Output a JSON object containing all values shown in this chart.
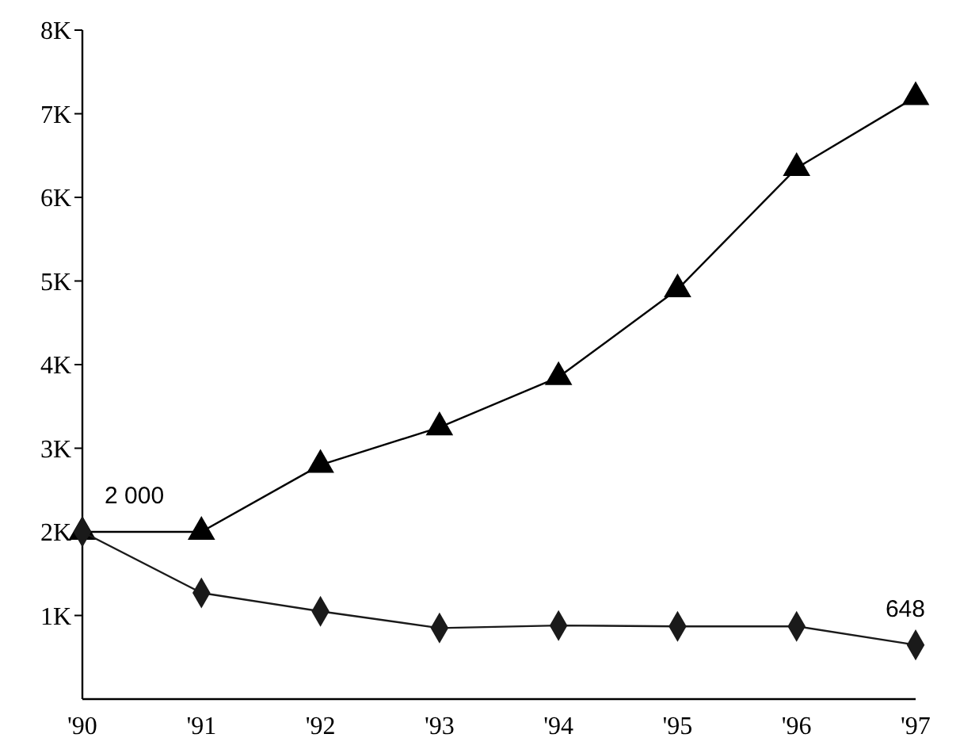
{
  "chart_data": {
    "type": "line",
    "categories": [
      "'90",
      "'91",
      "'92",
      "'93",
      "'94",
      "'95",
      "'96",
      "'97"
    ],
    "series": [
      {
        "color": "#000000",
        "marker": "triangle",
        "values": [
          2000,
          2000,
          2800,
          3250,
          3850,
          4900,
          6350,
          7200
        ],
        "value_labels": [
          "2 000",
          null,
          null,
          null,
          null,
          null,
          null,
          null
        ]
      },
      {
        "color": "#1a1a1a",
        "marker": "diamond",
        "values": [
          2000,
          1270,
          1050,
          850,
          880,
          870,
          870,
          648
        ],
        "value_labels": [
          null,
          null,
          null,
          null,
          null,
          null,
          null,
          "648"
        ]
      }
    ],
    "ylim": [
      0,
      8000
    ],
    "yticks": [
      {
        "value": 1000,
        "label": "1K"
      },
      {
        "value": 2000,
        "label": "2K"
      },
      {
        "value": 3000,
        "label": "3K"
      },
      {
        "value": 4000,
        "label": "4K"
      },
      {
        "value": 5000,
        "label": "5K"
      },
      {
        "value": 6000,
        "label": "6K"
      },
      {
        "value": 7000,
        "label": "7K"
      },
      {
        "value": 8000,
        "label": "8K"
      }
    ],
    "grid": false,
    "legend": false
  }
}
